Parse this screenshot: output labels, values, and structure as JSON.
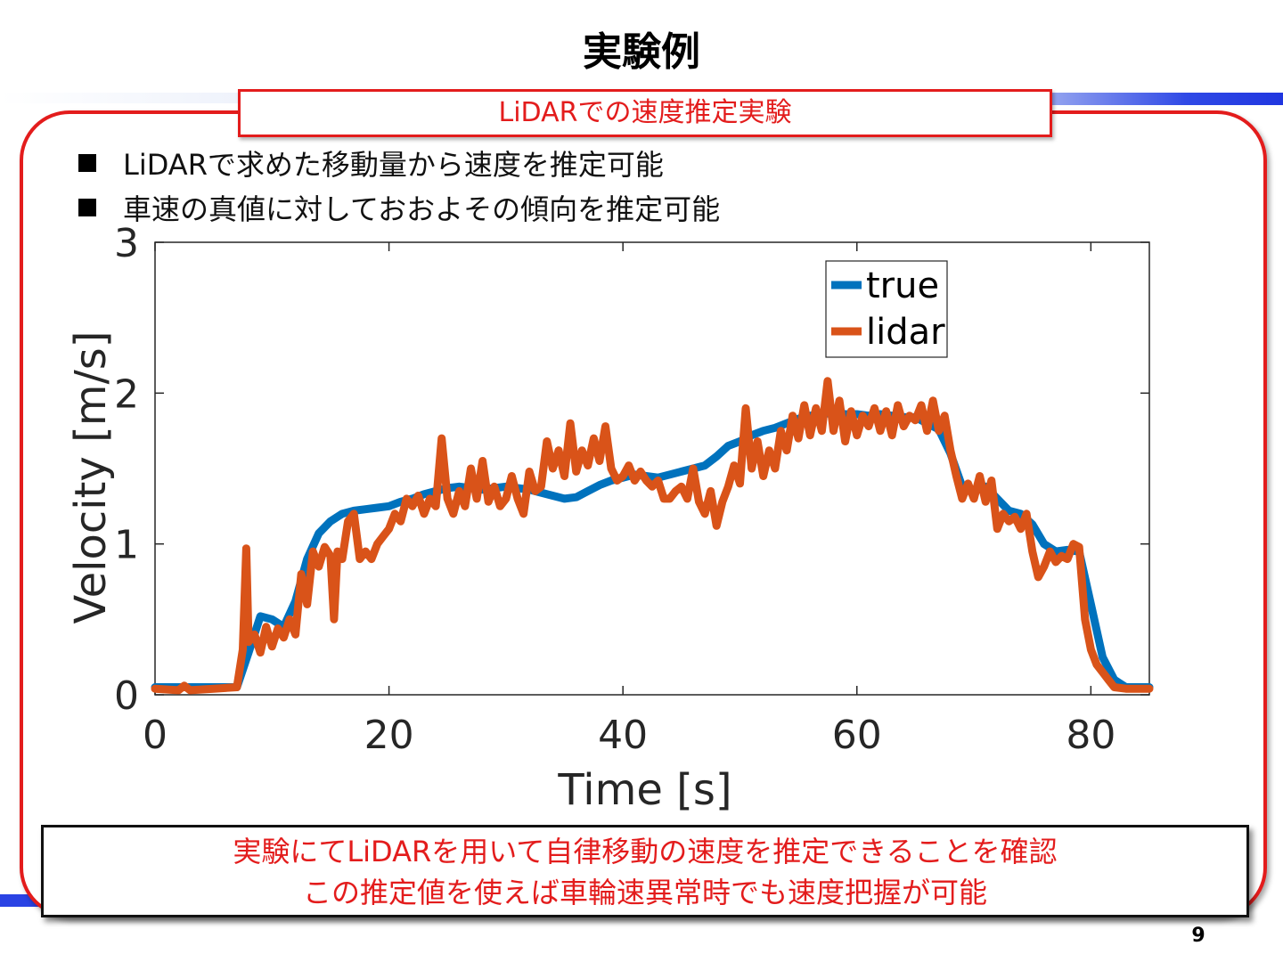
{
  "slide": {
    "title": "実験例",
    "heading": "LiDARでの速度推定実験",
    "bullets": [
      "LiDARで求めた移動量から速度を推定可能",
      "車速の真値に対しておおよその傾向を推定可能"
    ],
    "conclusion": [
      "実験にてLiDARを用いて自律移動の速度を推定できることを確認",
      "この推定値を使えば車輪速異常時でも速度把握が可能"
    ],
    "page_number": "9",
    "colors": {
      "accent_red": "#e31c1c",
      "band_blue": "#2a43e4"
    }
  },
  "chart_data": {
    "type": "line",
    "xlabel": "Time [s]",
    "ylabel": "Velocity [m/s]",
    "xlim": [
      0,
      85
    ],
    "ylim": [
      0,
      3
    ],
    "xticks": [
      0,
      20,
      40,
      60,
      80
    ],
    "yticks": [
      0,
      1,
      2,
      3
    ],
    "grid": false,
    "legend_position": "top-right",
    "series": [
      {
        "name": "true",
        "color": "#0072BD",
        "points": [
          [
            0,
            0.05
          ],
          [
            4,
            0.05
          ],
          [
            7,
            0.05
          ],
          [
            8,
            0.28
          ],
          [
            9,
            0.52
          ],
          [
            10,
            0.5
          ],
          [
            11,
            0.45
          ],
          [
            12,
            0.62
          ],
          [
            13,
            0.9
          ],
          [
            14,
            1.07
          ],
          [
            15,
            1.15
          ],
          [
            16,
            1.2
          ],
          [
            17,
            1.22
          ],
          [
            18,
            1.23
          ],
          [
            19,
            1.24
          ],
          [
            20,
            1.25
          ],
          [
            21,
            1.28
          ],
          [
            22,
            1.3
          ],
          [
            23,
            1.33
          ],
          [
            24,
            1.35
          ],
          [
            25,
            1.37
          ],
          [
            26,
            1.38
          ],
          [
            27,
            1.37
          ],
          [
            28,
            1.36
          ],
          [
            29,
            1.37
          ],
          [
            30,
            1.38
          ],
          [
            31,
            1.37
          ],
          [
            32,
            1.36
          ],
          [
            33,
            1.34
          ],
          [
            34,
            1.32
          ],
          [
            35,
            1.3
          ],
          [
            36,
            1.31
          ],
          [
            37,
            1.35
          ],
          [
            38,
            1.39
          ],
          [
            39,
            1.42
          ],
          [
            40,
            1.44
          ],
          [
            41,
            1.46
          ],
          [
            42,
            1.45
          ],
          [
            43,
            1.44
          ],
          [
            44,
            1.46
          ],
          [
            45,
            1.48
          ],
          [
            46,
            1.5
          ],
          [
            47,
            1.52
          ],
          [
            48,
            1.58
          ],
          [
            49,
            1.65
          ],
          [
            50,
            1.68
          ],
          [
            51,
            1.72
          ],
          [
            52,
            1.75
          ],
          [
            53,
            1.77
          ],
          [
            54,
            1.8
          ],
          [
            55,
            1.83
          ],
          [
            56,
            1.85
          ],
          [
            57,
            1.86
          ],
          [
            58,
            1.87
          ],
          [
            59,
            1.86
          ],
          [
            60,
            1.86
          ],
          [
            61,
            1.85
          ],
          [
            62,
            1.86
          ],
          [
            63,
            1.85
          ],
          [
            64,
            1.84
          ],
          [
            65,
            1.84
          ],
          [
            66,
            1.8
          ],
          [
            67,
            1.76
          ],
          [
            68,
            1.6
          ],
          [
            69,
            1.38
          ],
          [
            70,
            1.35
          ],
          [
            71,
            1.38
          ],
          [
            72,
            1.3
          ],
          [
            73,
            1.22
          ],
          [
            74,
            1.2
          ],
          [
            75,
            1.13
          ],
          [
            76,
            1.0
          ],
          [
            77,
            0.95
          ],
          [
            78,
            0.96
          ],
          [
            79,
            0.95
          ],
          [
            80,
            0.6
          ],
          [
            81,
            0.25
          ],
          [
            82,
            0.1
          ],
          [
            83,
            0.05
          ],
          [
            85,
            0.05
          ]
        ]
      },
      {
        "name": "lidar",
        "color": "#D95319",
        "points": [
          [
            0,
            0.04
          ],
          [
            2,
            0.03
          ],
          [
            2.5,
            0.06
          ],
          [
            3,
            0.03
          ],
          [
            5,
            0.04
          ],
          [
            7,
            0.05
          ],
          [
            7.5,
            0.3
          ],
          [
            7.8,
            0.97
          ],
          [
            8,
            0.35
          ],
          [
            8.5,
            0.4
          ],
          [
            9,
            0.28
          ],
          [
            9.5,
            0.45
          ],
          [
            10,
            0.32
          ],
          [
            10.5,
            0.44
          ],
          [
            11,
            0.38
          ],
          [
            11.5,
            0.5
          ],
          [
            12,
            0.4
          ],
          [
            12.5,
            0.8
          ],
          [
            13,
            0.6
          ],
          [
            13.5,
            0.95
          ],
          [
            14,
            0.85
          ],
          [
            14.5,
            0.98
          ],
          [
            15,
            0.92
          ],
          [
            15.3,
            0.5
          ],
          [
            15.6,
            0.95
          ],
          [
            16,
            0.9
          ],
          [
            16.5,
            1.15
          ],
          [
            17,
            1.2
          ],
          [
            17.5,
            0.9
          ],
          [
            18,
            0.95
          ],
          [
            18.5,
            0.9
          ],
          [
            19,
            1.0
          ],
          [
            19.5,
            1.05
          ],
          [
            20,
            1.1
          ],
          [
            20.5,
            1.2
          ],
          [
            21,
            1.15
          ],
          [
            21.5,
            1.3
          ],
          [
            22,
            1.25
          ],
          [
            22.5,
            1.32
          ],
          [
            23,
            1.2
          ],
          [
            23.5,
            1.3
          ],
          [
            24,
            1.25
          ],
          [
            24.5,
            1.7
          ],
          [
            25,
            1.3
          ],
          [
            25.5,
            1.2
          ],
          [
            26,
            1.35
          ],
          [
            26.5,
            1.25
          ],
          [
            27,
            1.5
          ],
          [
            27.5,
            1.3
          ],
          [
            28,
            1.55
          ],
          [
            28.5,
            1.28
          ],
          [
            29,
            1.38
          ],
          [
            29.5,
            1.25
          ],
          [
            30,
            1.3
          ],
          [
            30.5,
            1.45
          ],
          [
            31,
            1.3
          ],
          [
            31.5,
            1.2
          ],
          [
            32,
            1.48
          ],
          [
            32.5,
            1.35
          ],
          [
            33,
            1.38
          ],
          [
            33.5,
            1.68
          ],
          [
            34,
            1.5
          ],
          [
            34.5,
            1.62
          ],
          [
            35,
            1.45
          ],
          [
            35.5,
            1.8
          ],
          [
            36,
            1.48
          ],
          [
            36.5,
            1.62
          ],
          [
            37,
            1.52
          ],
          [
            37.5,
            1.7
          ],
          [
            38,
            1.55
          ],
          [
            38.5,
            1.78
          ],
          [
            39,
            1.5
          ],
          [
            39.5,
            1.42
          ],
          [
            40,
            1.45
          ],
          [
            40.5,
            1.52
          ],
          [
            41,
            1.42
          ],
          [
            41.5,
            1.48
          ],
          [
            42,
            1.42
          ],
          [
            42.5,
            1.38
          ],
          [
            43,
            1.42
          ],
          [
            43.5,
            1.3
          ],
          [
            44,
            1.3
          ],
          [
            44.5,
            1.35
          ],
          [
            45,
            1.38
          ],
          [
            45.5,
            1.3
          ],
          [
            46,
            1.5
          ],
          [
            46.5,
            1.28
          ],
          [
            47,
            1.2
          ],
          [
            47.5,
            1.35
          ],
          [
            48,
            1.12
          ],
          [
            48.5,
            1.28
          ],
          [
            49,
            1.38
          ],
          [
            49.5,
            1.52
          ],
          [
            50,
            1.4
          ],
          [
            50.5,
            1.9
          ],
          [
            51,
            1.5
          ],
          [
            51.5,
            1.68
          ],
          [
            52,
            1.45
          ],
          [
            52.5,
            1.62
          ],
          [
            53,
            1.5
          ],
          [
            53.5,
            1.75
          ],
          [
            54,
            1.62
          ],
          [
            54.5,
            1.85
          ],
          [
            55,
            1.7
          ],
          [
            55.5,
            1.92
          ],
          [
            56,
            1.72
          ],
          [
            56.5,
            1.9
          ],
          [
            57,
            1.75
          ],
          [
            57.5,
            2.08
          ],
          [
            58,
            1.75
          ],
          [
            58.5,
            1.95
          ],
          [
            59,
            1.68
          ],
          [
            59.5,
            1.88
          ],
          [
            60,
            1.72
          ],
          [
            60.5,
            1.85
          ],
          [
            61,
            1.78
          ],
          [
            61.5,
            1.9
          ],
          [
            62,
            1.75
          ],
          [
            62.5,
            1.88
          ],
          [
            63,
            1.72
          ],
          [
            63.5,
            1.92
          ],
          [
            64,
            1.78
          ],
          [
            64.5,
            1.85
          ],
          [
            65,
            1.82
          ],
          [
            65.5,
            1.92
          ],
          [
            66,
            1.75
          ],
          [
            66.5,
            1.95
          ],
          [
            67,
            1.75
          ],
          [
            67.5,
            1.85
          ],
          [
            68,
            1.62
          ],
          [
            68.5,
            1.45
          ],
          [
            69,
            1.3
          ],
          [
            69.5,
            1.4
          ],
          [
            70,
            1.3
          ],
          [
            70.5,
            1.45
          ],
          [
            71,
            1.28
          ],
          [
            71.5,
            1.42
          ],
          [
            72,
            1.1
          ],
          [
            72.5,
            1.2
          ],
          [
            73,
            1.15
          ],
          [
            73.5,
            1.18
          ],
          [
            74,
            1.1
          ],
          [
            74.5,
            1.2
          ],
          [
            75,
            0.95
          ],
          [
            75.5,
            0.78
          ],
          [
            76,
            0.85
          ],
          [
            76.5,
            0.95
          ],
          [
            77,
            0.88
          ],
          [
            77.5,
            0.92
          ],
          [
            78,
            0.9
          ],
          [
            78.5,
            1.0
          ],
          [
            79,
            0.98
          ],
          [
            79.5,
            0.5
          ],
          [
            80,
            0.3
          ],
          [
            80.5,
            0.2
          ],
          [
            81,
            0.15
          ],
          [
            81.5,
            0.1
          ],
          [
            82,
            0.05
          ],
          [
            83,
            0.04
          ],
          [
            85,
            0.04
          ]
        ]
      }
    ]
  }
}
